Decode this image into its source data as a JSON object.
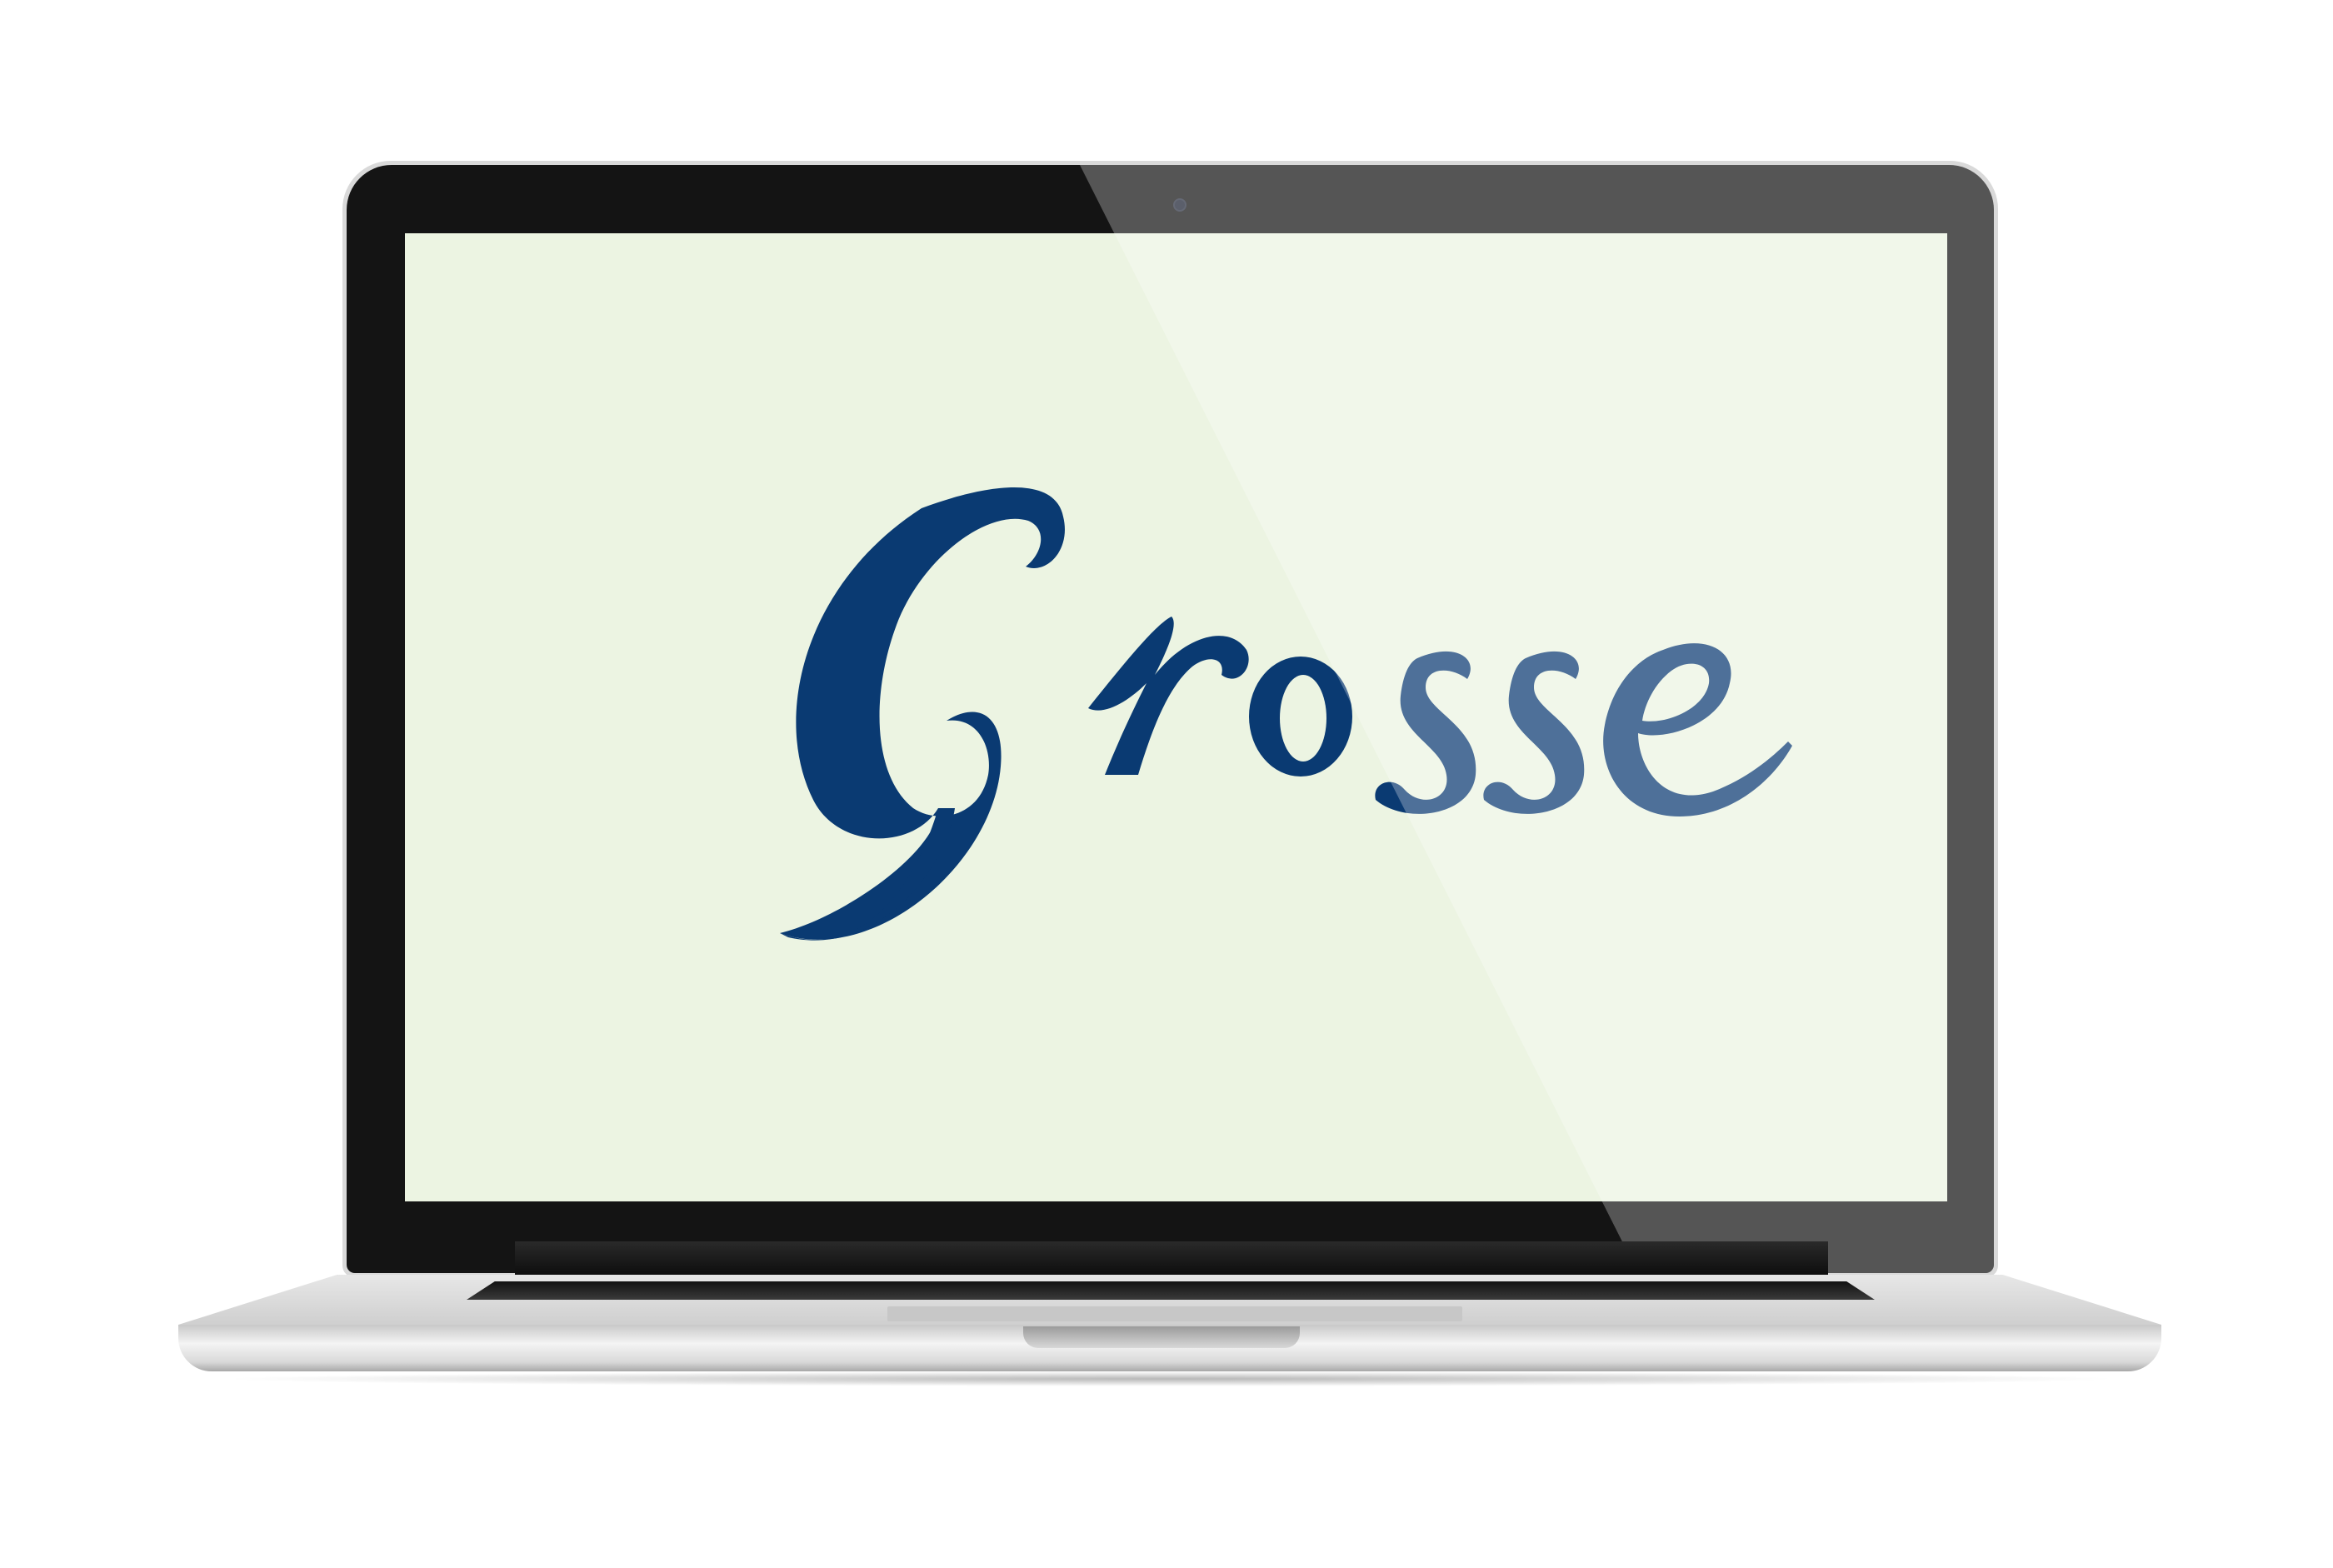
{
  "screen": {
    "background_color": "#ecf4e2",
    "logo": {
      "text": "Grosse",
      "color": "#0a3a72"
    }
  },
  "device": {
    "type": "laptop",
    "bezel_color": "#141414",
    "body_color": "#d9d9d9"
  }
}
